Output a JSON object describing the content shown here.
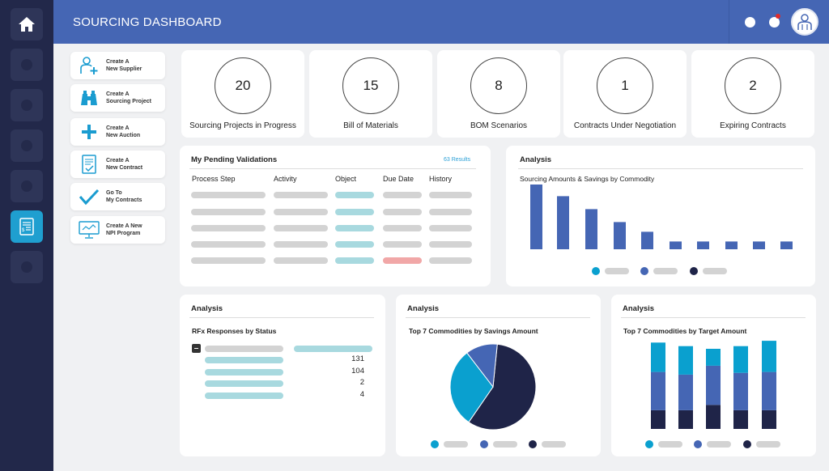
{
  "header": {
    "title": "SOURCING DASHBOARD"
  },
  "icons": {
    "home": "home-icon",
    "notifications": "bell-icon",
    "user": "user-avatar-icon"
  },
  "quick_actions": [
    {
      "label": "Create A\nNew Supplier",
      "icon": "add-user-icon"
    },
    {
      "label": "Create A\nSourcing Project",
      "icon": "binoculars-icon"
    },
    {
      "label": "Create A\nNew Auction",
      "icon": "plus-icon"
    },
    {
      "label": "Create A\nNew Contract",
      "icon": "contract-icon"
    },
    {
      "label": "Go To\nMy Contracts",
      "icon": "checkmark-icon"
    },
    {
      "label": "Create A New\nNPI Program",
      "icon": "monitor-program-icon"
    }
  ],
  "kpis": [
    {
      "value": "20",
      "label": "Sourcing Projects in Progress"
    },
    {
      "value": "15",
      "label": "Bill of Materials"
    },
    {
      "value": "8",
      "label": "BOM Scenarios"
    },
    {
      "value": "1",
      "label": "Contracts Under Negotiation"
    },
    {
      "value": "2",
      "label": "Expiring Contracts"
    }
  ],
  "validations": {
    "title": "My Pending Validations",
    "results": "63 Results",
    "columns": [
      "Process Step",
      "Activity",
      "Object",
      "Due Date",
      "History"
    ]
  },
  "analysis_top": {
    "title": "Analysis",
    "subtitle": "Sourcing Amounts & Savings by Commodity"
  },
  "rfx": {
    "title": "Analysis",
    "subtitle": "RFx Responses by Status",
    "values": [
      "131",
      "104",
      "2",
      "4"
    ]
  },
  "savings": {
    "title": "Analysis",
    "subtitle": "Top 7 Commodities by Savings Amount"
  },
  "target": {
    "title": "Analysis",
    "subtitle": "Top 7 Commodities by Target Amount"
  },
  "colors": {
    "teal": "#0aa0cf",
    "blue": "#4566b4",
    "navy": "#1f2448"
  },
  "chart_data": [
    {
      "type": "bar",
      "values": [
        100,
        82,
        62,
        42,
        27,
        12,
        12,
        12,
        12,
        12
      ],
      "ylim": [
        0,
        100
      ]
    },
    {
      "type": "pie",
      "values": [
        58,
        30,
        12
      ]
    },
    {
      "type": "bar",
      "stacked": true,
      "series": [
        {
          "values": [
            33,
            32,
            19,
            30,
            35
          ]
        },
        {
          "values": [
            43,
            40,
            44,
            42,
            43
          ]
        },
        {
          "values": [
            21,
            21,
            27,
            21,
            21
          ]
        }
      ]
    }
  ]
}
